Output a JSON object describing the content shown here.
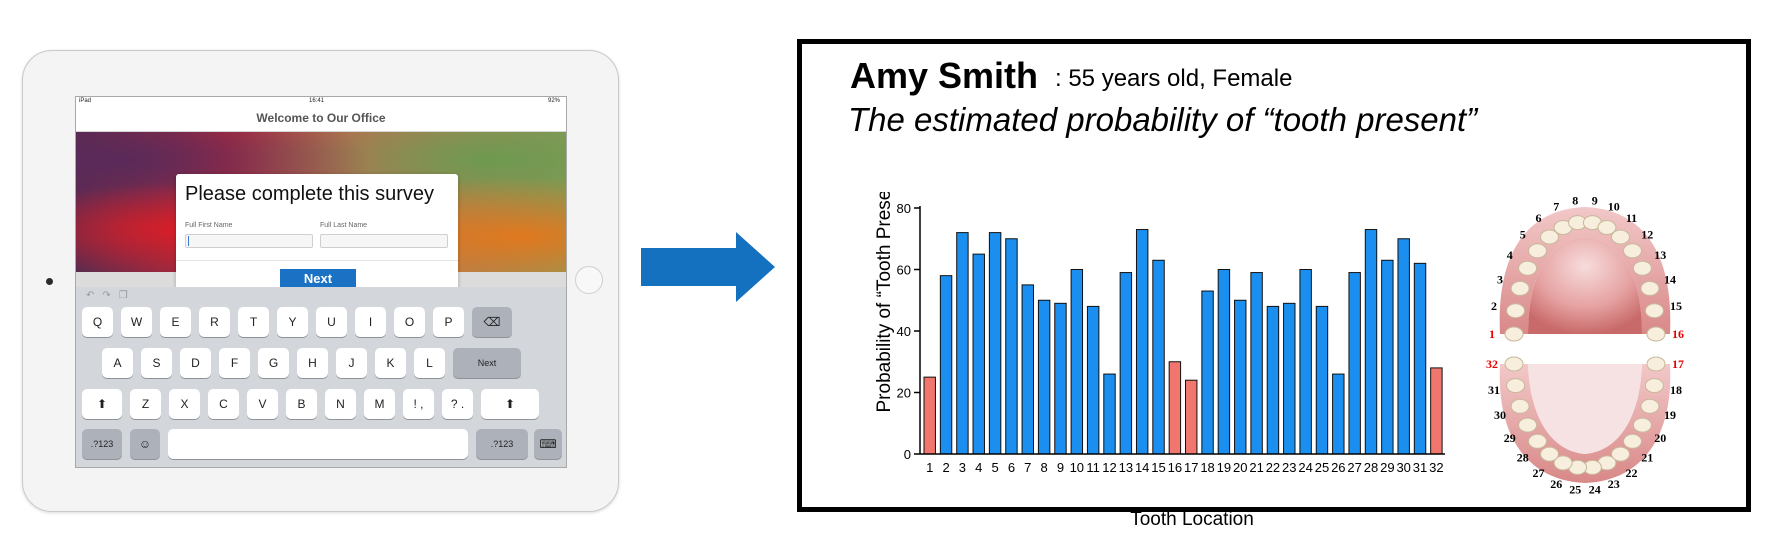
{
  "ipad": {
    "status_left": "iPad",
    "status_time": "16:41",
    "status_right": "92%",
    "nav_title": "Welcome to Our Office",
    "survey": {
      "title": "Please complete this survey",
      "first_name_label": "Full First Name",
      "last_name_label": "Full Last Name",
      "next_label": "Next"
    },
    "keyboard": {
      "row1": [
        "Q",
        "W",
        "E",
        "R",
        "T",
        "Y",
        "U",
        "I",
        "O",
        "P"
      ],
      "row2": [
        "A",
        "S",
        "D",
        "F",
        "G",
        "H",
        "J",
        "K",
        "L"
      ],
      "row2_action": "Next",
      "row3": [
        "Z",
        "X",
        "C",
        "V",
        "B",
        "N",
        "M",
        "! ,",
        "? ."
      ],
      "numbers_left": ".?123",
      "numbers_right": ".?123"
    }
  },
  "report": {
    "patient_name": "Amy Smith",
    "patient_details": ": 55 years old, Female",
    "title": "The estimated probability of “tooth present”"
  },
  "colors": {
    "blue_bar": "#1a8ff0",
    "red_bar": "#f0766e",
    "arrow": "#1471c0",
    "red_label": "#e60000"
  },
  "chart_data": {
    "type": "bar",
    "xlabel": "Tooth Location",
    "ylabel": "Probability of “Tooth Present”",
    "ylim": [
      0,
      80
    ],
    "yticks": [
      0,
      20,
      40,
      60,
      80
    ],
    "categories": [
      "1",
      "2",
      "3",
      "4",
      "5",
      "6",
      "7",
      "8",
      "9",
      "10",
      "11",
      "12",
      "13",
      "14",
      "15",
      "16",
      "17",
      "18",
      "19",
      "20",
      "21",
      "22",
      "23",
      "24",
      "25",
      "26",
      "27",
      "28",
      "29",
      "30",
      "31",
      "32"
    ],
    "values": [
      25,
      58,
      72,
      65,
      72,
      70,
      55,
      50,
      49,
      60,
      48,
      26,
      59,
      73,
      63,
      30,
      24,
      53,
      60,
      50,
      59,
      48,
      49,
      60,
      48,
      26,
      59,
      73,
      63,
      70,
      62,
      28
    ],
    "highlighted": [
      "1",
      "16",
      "17",
      "32"
    ]
  },
  "mouth": {
    "upper_numbers": [
      "1",
      "2",
      "3",
      "4",
      "5",
      "6",
      "7",
      "8",
      "9",
      "10",
      "11",
      "12",
      "13",
      "14",
      "15",
      "16"
    ],
    "lower_numbers": [
      "17",
      "18",
      "19",
      "20",
      "21",
      "22",
      "23",
      "24",
      "25",
      "26",
      "27",
      "28",
      "29",
      "30",
      "31",
      "32"
    ],
    "red_numbers": [
      "1",
      "16",
      "17",
      "32"
    ]
  }
}
